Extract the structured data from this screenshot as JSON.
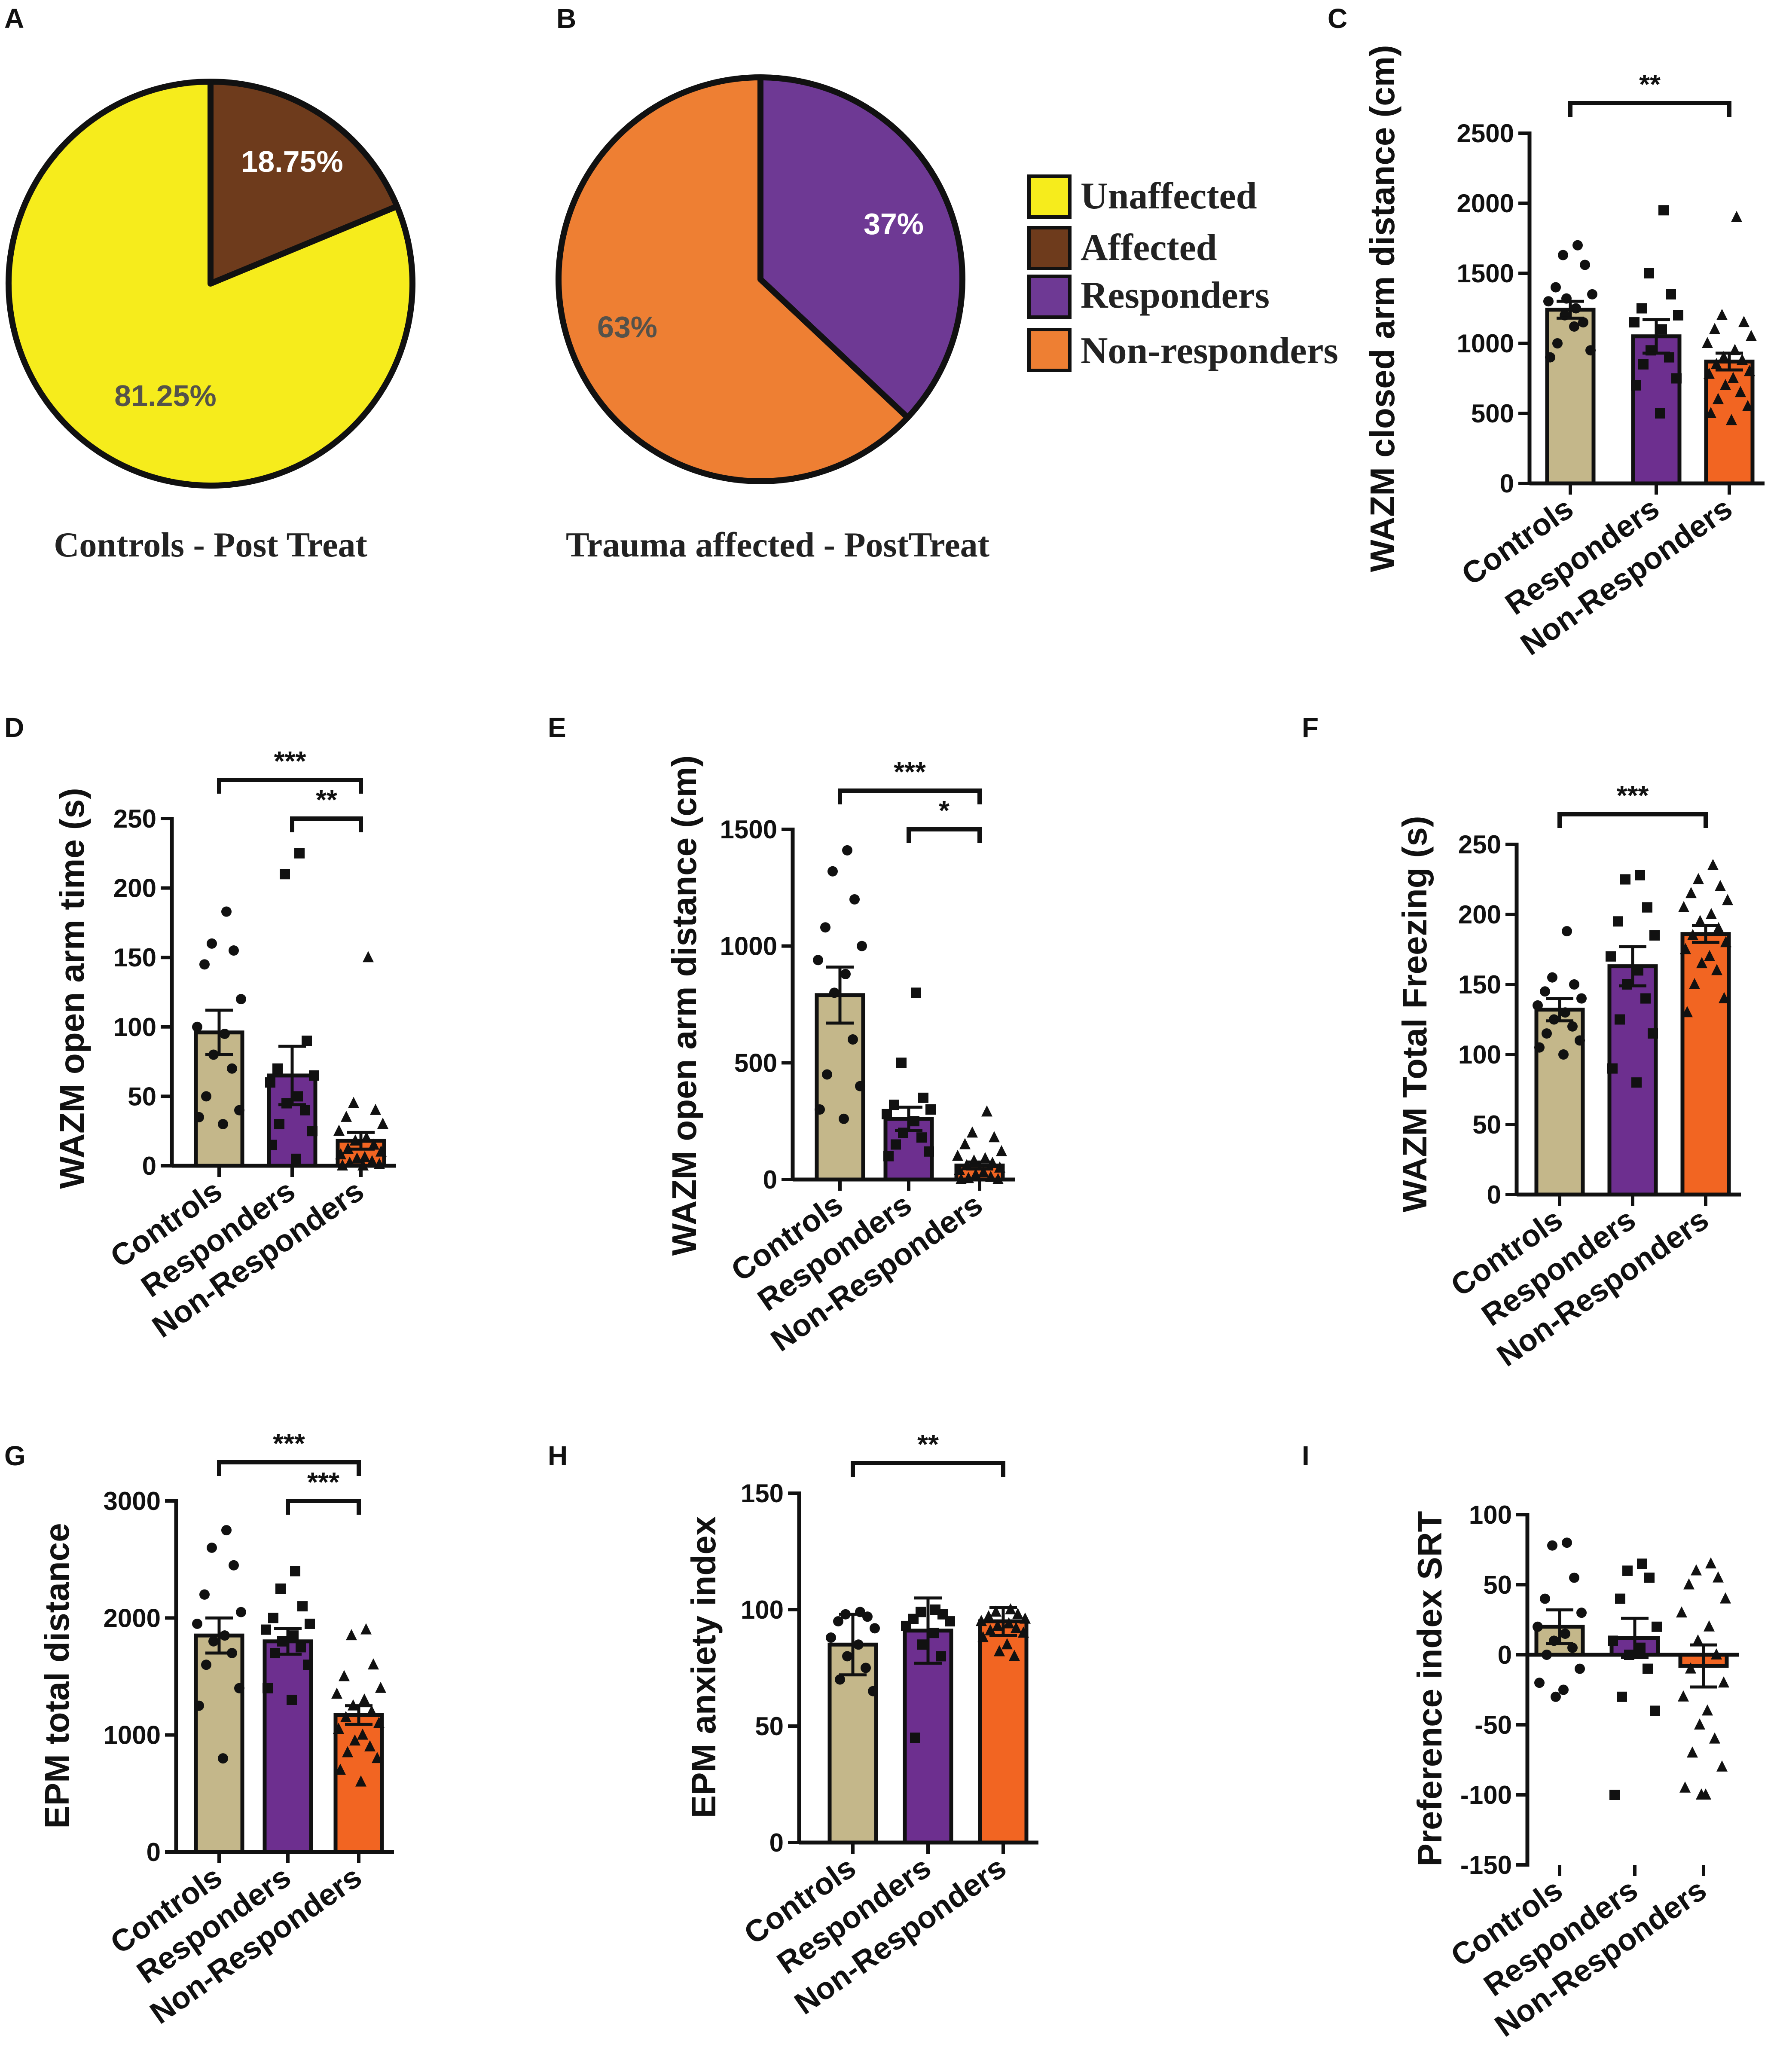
{
  "colors": {
    "unaffected": "#f6ec1c",
    "affected": "#6e3b1c",
    "responders": "#6e3994",
    "non_responders": "#ee7f33",
    "controls_bar": "#c4b78a",
    "responders_bar": "#6d2f8f",
    "nonresp_bar": "#f26522"
  },
  "pies": [
    {
      "panel": "A",
      "caption": "Controls - Post Treat",
      "slices": [
        {
          "label": "Affected",
          "value": 18.75,
          "text": "18.75%",
          "color": "#6e3b1c",
          "text_color": "#ffffff"
        },
        {
          "label": "Unaffected",
          "value": 81.25,
          "text": "81.25%",
          "color": "#f6ec1c",
          "text_color": "#55524a"
        }
      ]
    },
    {
      "panel": "B",
      "caption": "Trauma affected - PostTreat",
      "slices": [
        {
          "label": "Responders",
          "value": 37,
          "text": "37%",
          "color": "#6e3994",
          "text_color": "#ffffff"
        },
        {
          "label": "Non-responders",
          "value": 63,
          "text": "63%",
          "color": "#ee7f33",
          "text_color": "#55524a"
        }
      ]
    }
  ],
  "legend": [
    {
      "label": "Unaffected",
      "color": "#f6ec1c"
    },
    {
      "label": "Affected",
      "color": "#6e3b1c"
    },
    {
      "label": "Responders",
      "color": "#6e3994"
    },
    {
      "label": "Non-responders",
      "color": "#ee7f33"
    }
  ],
  "chart_data": [
    {
      "panel": "C",
      "type": "bar",
      "ylabel": "WAZM closed arm distance (cm)",
      "categories": [
        "Controls",
        "Responders",
        "Non-Responders"
      ],
      "values": [
        1240,
        1050,
        870
      ],
      "errors": [
        60,
        120,
        60
      ],
      "ylim": [
        0,
        2500
      ],
      "yticks": [
        0,
        500,
        1000,
        1500,
        2000,
        2500
      ],
      "points": [
        [
          1700,
          1630,
          1560,
          1400,
          1350,
          1300,
          1250,
          1200,
          1150,
          1000,
          950,
          900,
          1120,
          1320
        ],
        [
          1950,
          1500,
          1350,
          1250,
          1200,
          1150,
          1100,
          950,
          900,
          850,
          750,
          700,
          500
        ],
        [
          1900,
          1200,
          1150,
          1100,
          1050,
          1000,
          950,
          900,
          880,
          850,
          800,
          780,
          750,
          700,
          650,
          600,
          550,
          500,
          450
        ]
      ],
      "significance": [
        {
          "from": 0,
          "to": 2,
          "label": "**"
        }
      ]
    },
    {
      "panel": "D",
      "type": "bar",
      "ylabel": "WAZM open arm time (s)",
      "categories": [
        "Controls",
        "Responders",
        "Non-Responders"
      ],
      "values": [
        96,
        65,
        18
      ],
      "errors": [
        16,
        21,
        6
      ],
      "ylim": [
        0,
        250
      ],
      "yticks": [
        0,
        50,
        100,
        150,
        200,
        250
      ],
      "points": [
        [
          183,
          160,
          155,
          145,
          120,
          100,
          95,
          80,
          70,
          50,
          40,
          35,
          30
        ],
        [
          225,
          210,
          90,
          70,
          65,
          60,
          50,
          45,
          40,
          30,
          25,
          15,
          5
        ],
        [
          150,
          45,
          40,
          35,
          30,
          25,
          20,
          18,
          15,
          12,
          10,
          8,
          6,
          5,
          3,
          2,
          1,
          0,
          0
        ]
      ],
      "significance": [
        {
          "from": 0,
          "to": 2,
          "label": "***"
        },
        {
          "from": 1,
          "to": 2,
          "label": "**"
        }
      ]
    },
    {
      "panel": "E",
      "type": "bar",
      "ylabel": "WAZM open arm distance (cm)",
      "categories": [
        "Controls",
        "Responders",
        "Non-Responders"
      ],
      "values": [
        790,
        260,
        60
      ],
      "errors": [
        120,
        50,
        15
      ],
      "ylim": [
        0,
        1500
      ],
      "yticks": [
        0,
        500,
        1000,
        1500
      ],
      "points": [
        [
          1410,
          1320,
          1200,
          1080,
          1000,
          940,
          880,
          800,
          600,
          450,
          400,
          300,
          260
        ],
        [
          800,
          500,
          350,
          320,
          300,
          280,
          250,
          200,
          180,
          150,
          120,
          100
        ],
        [
          290,
          200,
          180,
          150,
          120,
          100,
          90,
          80,
          70,
          60,
          50,
          40,
          30,
          20,
          10,
          5,
          0,
          0
        ]
      ],
      "significance": [
        {
          "from": 0,
          "to": 2,
          "label": "***"
        },
        {
          "from": 1,
          "to": 2,
          "label": "*"
        }
      ]
    },
    {
      "panel": "F",
      "type": "bar",
      "ylabel": "WAZM Total Freezing (s)",
      "categories": [
        "Controls",
        "Responders",
        "Non-Responders"
      ],
      "values": [
        132,
        163,
        186
      ],
      "errors": [
        8,
        14,
        6
      ],
      "ylim": [
        0,
        250
      ],
      "yticks": [
        0,
        50,
        100,
        150,
        200,
        250
      ],
      "points": [
        [
          188,
          155,
          150,
          145,
          140,
          135,
          130,
          125,
          120,
          115,
          110,
          105,
          100
        ],
        [
          228,
          225,
          205,
          195,
          185,
          170,
          160,
          150,
          140,
          125,
          115,
          90,
          80
        ],
        [
          235,
          225,
          220,
          215,
          210,
          205,
          200,
          195,
          190,
          185,
          180,
          175,
          170,
          165,
          160,
          150,
          140,
          130
        ]
      ],
      "significance": [
        {
          "from": 0,
          "to": 2,
          "label": "***"
        }
      ]
    },
    {
      "panel": "G",
      "type": "bar",
      "ylabel": "EPM total distance",
      "categories": [
        "Controls",
        "Responders",
        "Non-Responders"
      ],
      "values": [
        1850,
        1800,
        1170
      ],
      "errors": [
        150,
        110,
        80
      ],
      "ylim": [
        0,
        3000
      ],
      "yticks": [
        0,
        1000,
        2000,
        3000
      ],
      "points": [
        [
          2750,
          2600,
          2450,
          2200,
          2050,
          1950,
          1850,
          1800,
          1700,
          1600,
          1400,
          1250,
          800
        ],
        [
          2400,
          2250,
          2100,
          2000,
          1950,
          1900,
          1850,
          1800,
          1750,
          1700,
          1600,
          1400,
          1300
        ],
        [
          1900,
          1850,
          1600,
          1500,
          1400,
          1350,
          1300,
          1250,
          1200,
          1150,
          1100,
          1050,
          1000,
          950,
          900,
          850,
          800,
          700,
          600
        ]
      ],
      "significance": [
        {
          "from": 0,
          "to": 2,
          "label": "***"
        },
        {
          "from": 1,
          "to": 2,
          "label": "***"
        }
      ]
    },
    {
      "panel": "H",
      "type": "bar",
      "ylabel": "EPM anxiety index",
      "categories": [
        "Controls",
        "Responders",
        "Non-Responders"
      ],
      "values": [
        85,
        91,
        95
      ],
      "errors": [
        13,
        14,
        6
      ],
      "ylim": [
        0,
        150
      ],
      "yticks": [
        0,
        50,
        100,
        150
      ],
      "points": [
        [
          99,
          98,
          97,
          95,
          92,
          88,
          85,
          80,
          75,
          70,
          65
        ],
        [
          100,
          99,
          98,
          96,
          95,
          93,
          90,
          85,
          80,
          45
        ],
        [
          100,
          99,
          98,
          97,
          96,
          95,
          94,
          93,
          92,
          91,
          90,
          88,
          85,
          82,
          80
        ]
      ],
      "significance": [
        {
          "from": 0,
          "to": 2,
          "label": "**"
        }
      ]
    },
    {
      "panel": "I",
      "type": "bar",
      "ylabel": "Preference index SRT",
      "categories": [
        "Controls",
        "Responders",
        "Non-Responders"
      ],
      "values": [
        20,
        12,
        -8
      ],
      "errors": [
        12,
        14,
        15
      ],
      "ylim": [
        -150,
        100
      ],
      "yticks": [
        -150,
        -100,
        -50,
        0,
        50,
        100
      ],
      "points": [
        [
          80,
          78,
          55,
          40,
          30,
          20,
          15,
          10,
          5,
          0,
          -10,
          -20,
          -25,
          -30
        ],
        [
          65,
          60,
          55,
          40,
          20,
          10,
          5,
          0,
          -10,
          -30,
          -40,
          -100
        ],
        [
          65,
          60,
          55,
          50,
          40,
          30,
          20,
          10,
          0,
          -10,
          -20,
          -30,
          -40,
          -50,
          -60,
          -70,
          -80,
          -95,
          -100,
          -100
        ]
      ],
      "significance": []
    }
  ]
}
